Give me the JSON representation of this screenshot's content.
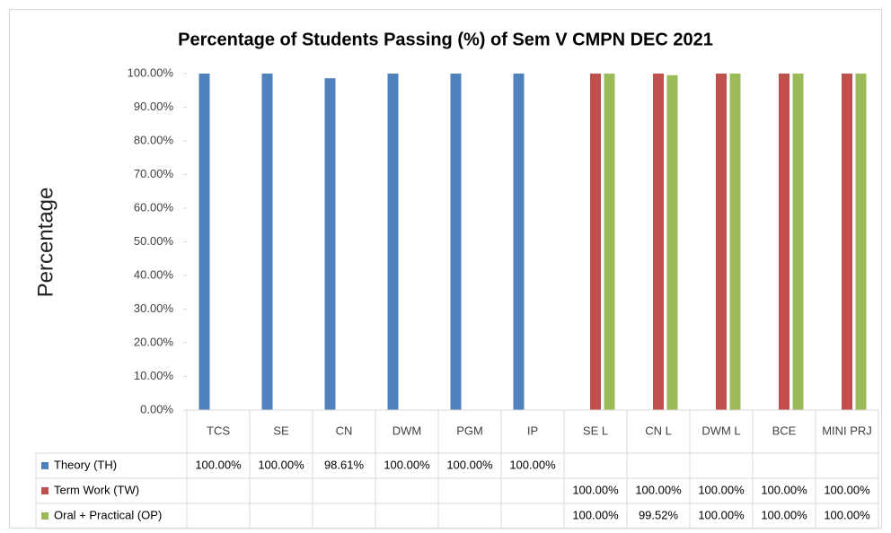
{
  "chart_data": {
    "type": "bar",
    "title": "Percentage of Students Passing (%) of Sem V CMPN DEC 2021",
    "y_label": "Percentage",
    "categories": [
      "TCS",
      "SE",
      "CN",
      "DWM",
      "PGM",
      "IP",
      "SE L",
      "CN L",
      "DWM L",
      "BCE",
      "MINI PRJ"
    ],
    "series": [
      {
        "name": "Theory (TH)",
        "color": "#4f81bd",
        "values": [
          100,
          100,
          98.61,
          100,
          100,
          100,
          null,
          null,
          null,
          null,
          null
        ],
        "value_labels": [
          "100.00%",
          "100.00%",
          "98.61%",
          "100.00%",
          "100.00%",
          "100.00%",
          null,
          null,
          null,
          null,
          null
        ]
      },
      {
        "name": "Term Work (TW)",
        "color": "#c0504d",
        "values": [
          null,
          null,
          null,
          null,
          null,
          null,
          100,
          100,
          100,
          100,
          100
        ],
        "value_labels": [
          null,
          null,
          null,
          null,
          null,
          null,
          "100.00%",
          "100.00%",
          "100.00%",
          "100.00%",
          "100.00%"
        ]
      },
      {
        "name": "Oral + Practical (OP)",
        "color": "#9bbb59",
        "values": [
          null,
          null,
          null,
          null,
          null,
          null,
          100,
          99.52,
          100,
          100,
          100
        ],
        "value_labels": [
          null,
          null,
          null,
          null,
          null,
          null,
          "100.00%",
          "99.52%",
          "100.00%",
          "100.00%",
          "100.00%"
        ]
      }
    ],
    "ylim": [
      0,
      100
    ],
    "yticks": [
      {
        "value": 0,
        "label": "0.00%"
      },
      {
        "value": 10,
        "label": "10.00%"
      },
      {
        "value": 20,
        "label": "20.00%"
      },
      {
        "value": 30,
        "label": "30.00%"
      },
      {
        "value": 40,
        "label": "40.00%"
      },
      {
        "value": 50,
        "label": "50.00%"
      },
      {
        "value": 60,
        "label": "60.00%"
      },
      {
        "value": 70,
        "label": "70.00%"
      },
      {
        "value": 80,
        "label": "80.00%"
      },
      {
        "value": 90,
        "label": "90.00%"
      },
      {
        "value": 100,
        "label": "100.00%"
      }
    ],
    "grid": false,
    "data_table": true
  }
}
